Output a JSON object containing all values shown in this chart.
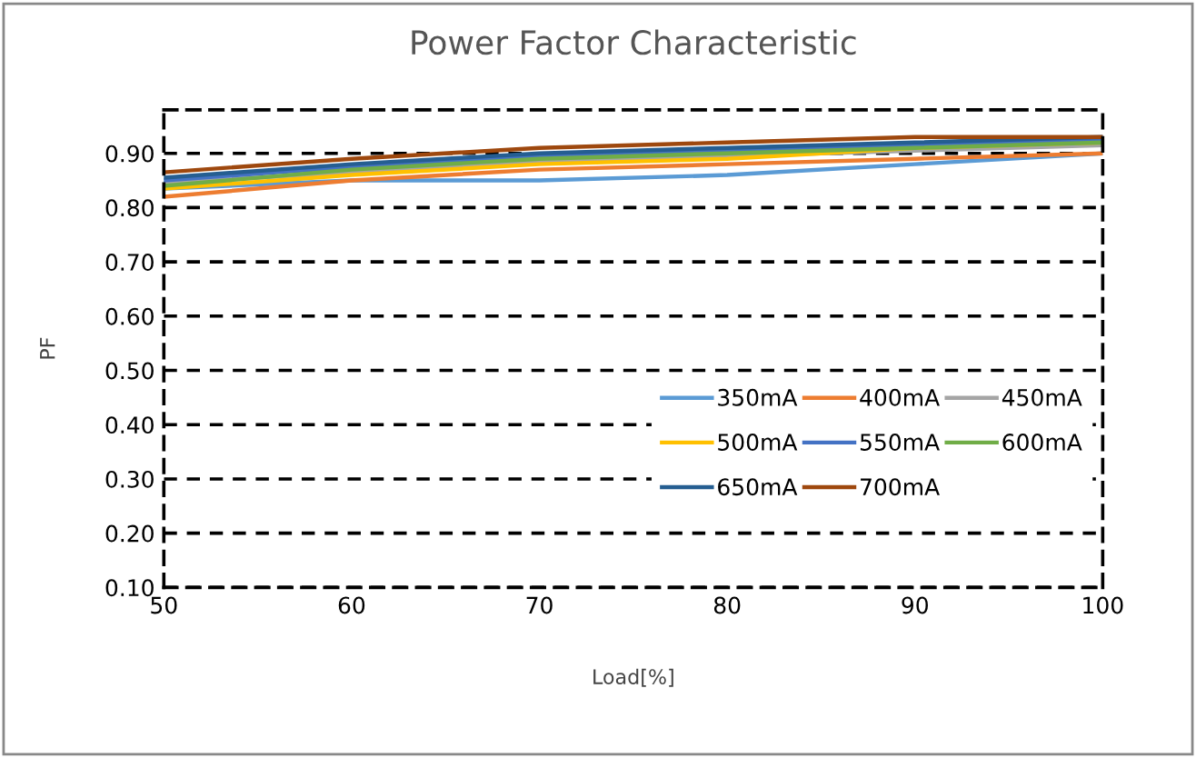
{
  "chart_data": {
    "type": "line",
    "title": "Power Factor Characteristic",
    "xlabel": "Load[%]",
    "ylabel": "PF",
    "x": [
      50,
      60,
      70,
      80,
      90,
      100
    ],
    "xlim": [
      50,
      100
    ],
    "xticks": [
      50,
      60,
      70,
      80,
      90,
      100
    ],
    "ylim": [
      0.1,
      0.98
    ],
    "yticks": [
      {
        "value": 0.1,
        "label": "0.10"
      },
      {
        "value": 0.2,
        "label": "0.20"
      },
      {
        "value": 0.3,
        "label": "0.30"
      },
      {
        "value": 0.4,
        "label": "0.40"
      },
      {
        "value": 0.5,
        "label": "0.50"
      },
      {
        "value": 0.6,
        "label": "0.60"
      },
      {
        "value": 0.7,
        "label": "0.70"
      },
      {
        "value": 0.8,
        "label": "0.80"
      },
      {
        "value": 0.9,
        "label": "0.90"
      }
    ],
    "grid": "y",
    "legend": "right",
    "marker": "none",
    "line_style": "solid",
    "series": [
      {
        "name": "350mA",
        "color": "#5b9bd5",
        "values": [
          0.835,
          0.85,
          0.85,
          0.86,
          0.88,
          0.9
        ]
      },
      {
        "name": "400mA",
        "color": "#ed7d31",
        "values": [
          0.82,
          0.85,
          0.87,
          0.88,
          0.89,
          0.9
        ]
      },
      {
        "name": "450mA",
        "color": "#a5a5a5",
        "values": [
          0.845,
          0.865,
          0.885,
          0.895,
          0.905,
          0.915
        ]
      },
      {
        "name": "500mA",
        "color": "#ffc000",
        "values": [
          0.835,
          0.86,
          0.88,
          0.89,
          0.91,
          0.92
        ]
      },
      {
        "name": "550mA",
        "color": "#4472c4",
        "values": [
          0.85,
          0.875,
          0.895,
          0.905,
          0.915,
          0.925
        ]
      },
      {
        "name": "600mA",
        "color": "#70ad47",
        "values": [
          0.84,
          0.87,
          0.89,
          0.9,
          0.91,
          0.92
        ]
      },
      {
        "name": "650mA",
        "color": "#255e91",
        "values": [
          0.855,
          0.88,
          0.9,
          0.91,
          0.92,
          0.93
        ]
      },
      {
        "name": "700mA",
        "color": "#9e480e",
        "values": [
          0.865,
          0.89,
          0.91,
          0.92,
          0.93,
          0.93
        ]
      }
    ]
  }
}
